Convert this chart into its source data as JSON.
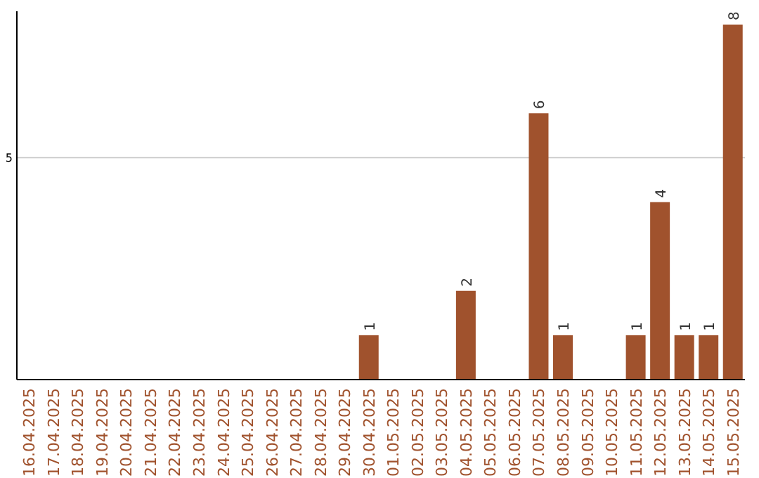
{
  "chart_data": {
    "type": "bar",
    "data_labels": true,
    "ylim": [
      0,
      8.3
    ],
    "categories": [
      "16.04.2025",
      "17.04.2025",
      "18.04.2025",
      "19.04.2025",
      "20.04.2025",
      "21.04.2025",
      "22.04.2025",
      "23.04.2025",
      "24.04.2025",
      "25.04.2025",
      "26.04.2025",
      "27.04.2025",
      "28.04.2025",
      "29.04.2025",
      "30.04.2025",
      "01.05.2025",
      "02.05.2025",
      "03.05.2025",
      "04.05.2025",
      "05.05.2025",
      "06.05.2025",
      "07.05.2025",
      "08.05.2025",
      "09.05.2025",
      "10.05.2025",
      "11.05.2025",
      "12.05.2025",
      "13.05.2025",
      "14.05.2025",
      "15.05.2025"
    ],
    "values": [
      null,
      null,
      null,
      null,
      null,
      null,
      null,
      null,
      null,
      null,
      null,
      null,
      null,
      null,
      1,
      null,
      null,
      null,
      2,
      null,
      null,
      6,
      1,
      null,
      null,
      1,
      4,
      1,
      1,
      8
    ],
    "color": "#a0522d",
    "ref_lines": [
      {
        "axis": "y",
        "value": 5,
        "label": "5",
        "color": "#cccccc"
      }
    ]
  }
}
